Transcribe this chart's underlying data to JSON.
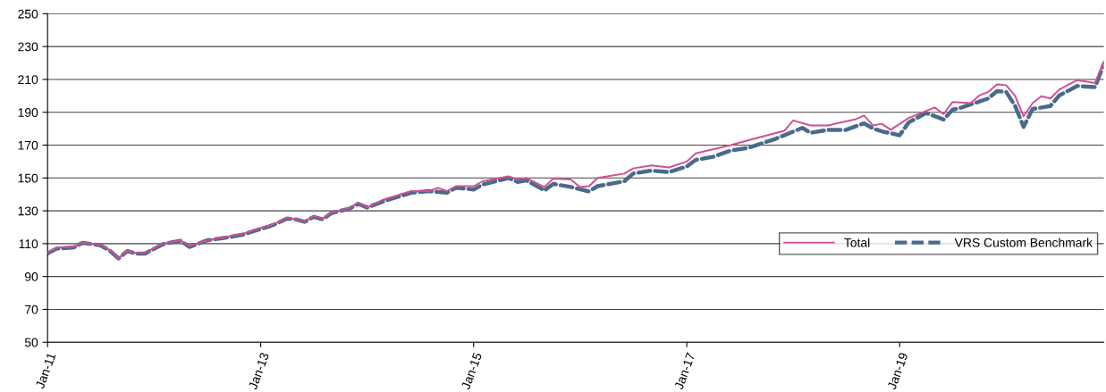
{
  "chart_data": {
    "type": "line",
    "ylim": [
      50,
      250
    ],
    "yticks": [
      50,
      70,
      90,
      110,
      130,
      150,
      170,
      190,
      210,
      230,
      250
    ],
    "xlim": [
      "2011-01",
      "2020-12"
    ],
    "xticks": [
      {
        "value": "2011-01",
        "label": "Jan-11"
      },
      {
        "value": "2013-01",
        "label": "Jan-13"
      },
      {
        "value": "2015-01",
        "label": "Jan-15"
      },
      {
        "value": "2017-01",
        "label": "Jan-17"
      },
      {
        "value": "2019-01",
        "label": "Jan-19"
      }
    ],
    "grid": "y",
    "legend": "right",
    "marker": "none",
    "series": [
      {
        "name": "Total",
        "color": "#d0508f",
        "line_style": "solid",
        "x": [
          "2011-01",
          "2011-02",
          "2011-04",
          "2011-05",
          "2011-07",
          "2011-08",
          "2011-09",
          "2011-10",
          "2011-11",
          "2011-12",
          "2012-02",
          "2012-03",
          "2012-04",
          "2012-05",
          "2012-07",
          "2012-09",
          "2012-11",
          "2013-01",
          "2013-02",
          "2013-03",
          "2013-04",
          "2013-05",
          "2013-06",
          "2013-07",
          "2013-08",
          "2013-09",
          "2013-11",
          "2013-12",
          "2014-01",
          "2014-03",
          "2014-06",
          "2014-08",
          "2014-09",
          "2014-10",
          "2014-11",
          "2015-01",
          "2015-02",
          "2015-05",
          "2015-06",
          "2015-07",
          "2015-09",
          "2015-10",
          "2015-12",
          "2016-01",
          "2016-02",
          "2016-03",
          "2016-06",
          "2016-07",
          "2016-09",
          "2016-11",
          "2017-01",
          "2017-02",
          "2017-06",
          "2017-08",
          "2017-12",
          "2018-01",
          "2018-03",
          "2018-05",
          "2018-06",
          "2018-08",
          "2018-09",
          "2018-10",
          "2018-11",
          "2018-12",
          "2019-02",
          "2019-05",
          "2019-06",
          "2019-07",
          "2019-09",
          "2019-10",
          "2019-11",
          "2019-12",
          "2020-01",
          "2020-02",
          "2020-03",
          "2020-04",
          "2020-05",
          "2020-06",
          "2020-07",
          "2020-09",
          "2020-11",
          "2020-12"
        ],
        "values": [
          104.4,
          107.6,
          108,
          110.7,
          109.3,
          106.3,
          101,
          105.7,
          104.3,
          104.4,
          110,
          111,
          112,
          108.5,
          112,
          114,
          116,
          119.6,
          121,
          123,
          125.7,
          125,
          123.7,
          126.7,
          125.2,
          129,
          131.7,
          134.8,
          132,
          137,
          142,
          142,
          144,
          142,
          145,
          145,
          148,
          151,
          149,
          150,
          144.5,
          149.6,
          149,
          144.5,
          145,
          150,
          152.7,
          155.8,
          157.6,
          156.4,
          160,
          165,
          170,
          173,
          178.7,
          185,
          182,
          182,
          183.3,
          185.6,
          188,
          182,
          183,
          179.3,
          186.5,
          192.9,
          188.9,
          196.2,
          195.6,
          200.2,
          202.4,
          207,
          206.5,
          200,
          187.5,
          195.6,
          199.8,
          198.4,
          203.8,
          209.6,
          207.8,
          221
        ]
      },
      {
        "name": "VRS Custom Benchmark",
        "color": "#4a6a8c",
        "line_style": "dashed",
        "x": [
          "2011-01",
          "2011-02",
          "2011-04",
          "2011-05",
          "2011-07",
          "2011-08",
          "2011-09",
          "2011-10",
          "2011-11",
          "2011-12",
          "2012-02",
          "2012-03",
          "2012-04",
          "2012-05",
          "2012-07",
          "2012-09",
          "2012-11",
          "2013-01",
          "2013-02",
          "2013-03",
          "2013-04",
          "2013-05",
          "2013-06",
          "2013-07",
          "2013-08",
          "2013-09",
          "2013-11",
          "2013-12",
          "2014-01",
          "2014-03",
          "2014-06",
          "2014-08",
          "2014-10",
          "2014-11",
          "2015-01",
          "2015-02",
          "2015-05",
          "2015-06",
          "2015-07",
          "2015-09",
          "2015-10",
          "2015-12",
          "2016-02",
          "2016-03",
          "2016-06",
          "2016-07",
          "2016-09",
          "2016-11",
          "2017-01",
          "2017-02",
          "2017-04",
          "2017-06",
          "2017-08",
          "2017-11",
          "2018-02",
          "2018-03",
          "2018-05",
          "2018-07",
          "2018-09",
          "2018-10",
          "2018-11",
          "2019-01",
          "2019-02",
          "2019-04",
          "2019-06",
          "2019-07",
          "2019-08",
          "2019-11",
          "2019-12",
          "2020-01",
          "2020-02",
          "2020-03",
          "2020-04",
          "2020-06",
          "2020-07",
          "2020-09",
          "2020-11",
          "2020-12"
        ],
        "values": [
          104,
          107,
          107.7,
          110.5,
          109,
          106,
          101,
          105.5,
          104,
          104,
          109.7,
          110.8,
          111.8,
          108,
          112,
          113.6,
          115.5,
          119,
          120.6,
          122.6,
          125.3,
          124.8,
          123.3,
          126.3,
          124.8,
          128.6,
          131.3,
          134.3,
          132,
          136,
          141,
          142,
          141,
          144,
          143,
          146,
          150,
          147.6,
          148.5,
          142.4,
          146.4,
          144.5,
          141.8,
          145,
          148,
          152.7,
          154.5,
          153.6,
          157,
          161,
          162.9,
          166.7,
          168.4,
          173.8,
          180.5,
          177.5,
          179.3,
          179.3,
          183.3,
          180.2,
          178.4,
          176,
          183.8,
          189.6,
          185.6,
          191.5,
          192.9,
          198.4,
          202.9,
          202.4,
          193.8,
          181.1,
          192,
          193.8,
          200.2,
          206,
          205.3,
          219.3
        ]
      }
    ]
  }
}
